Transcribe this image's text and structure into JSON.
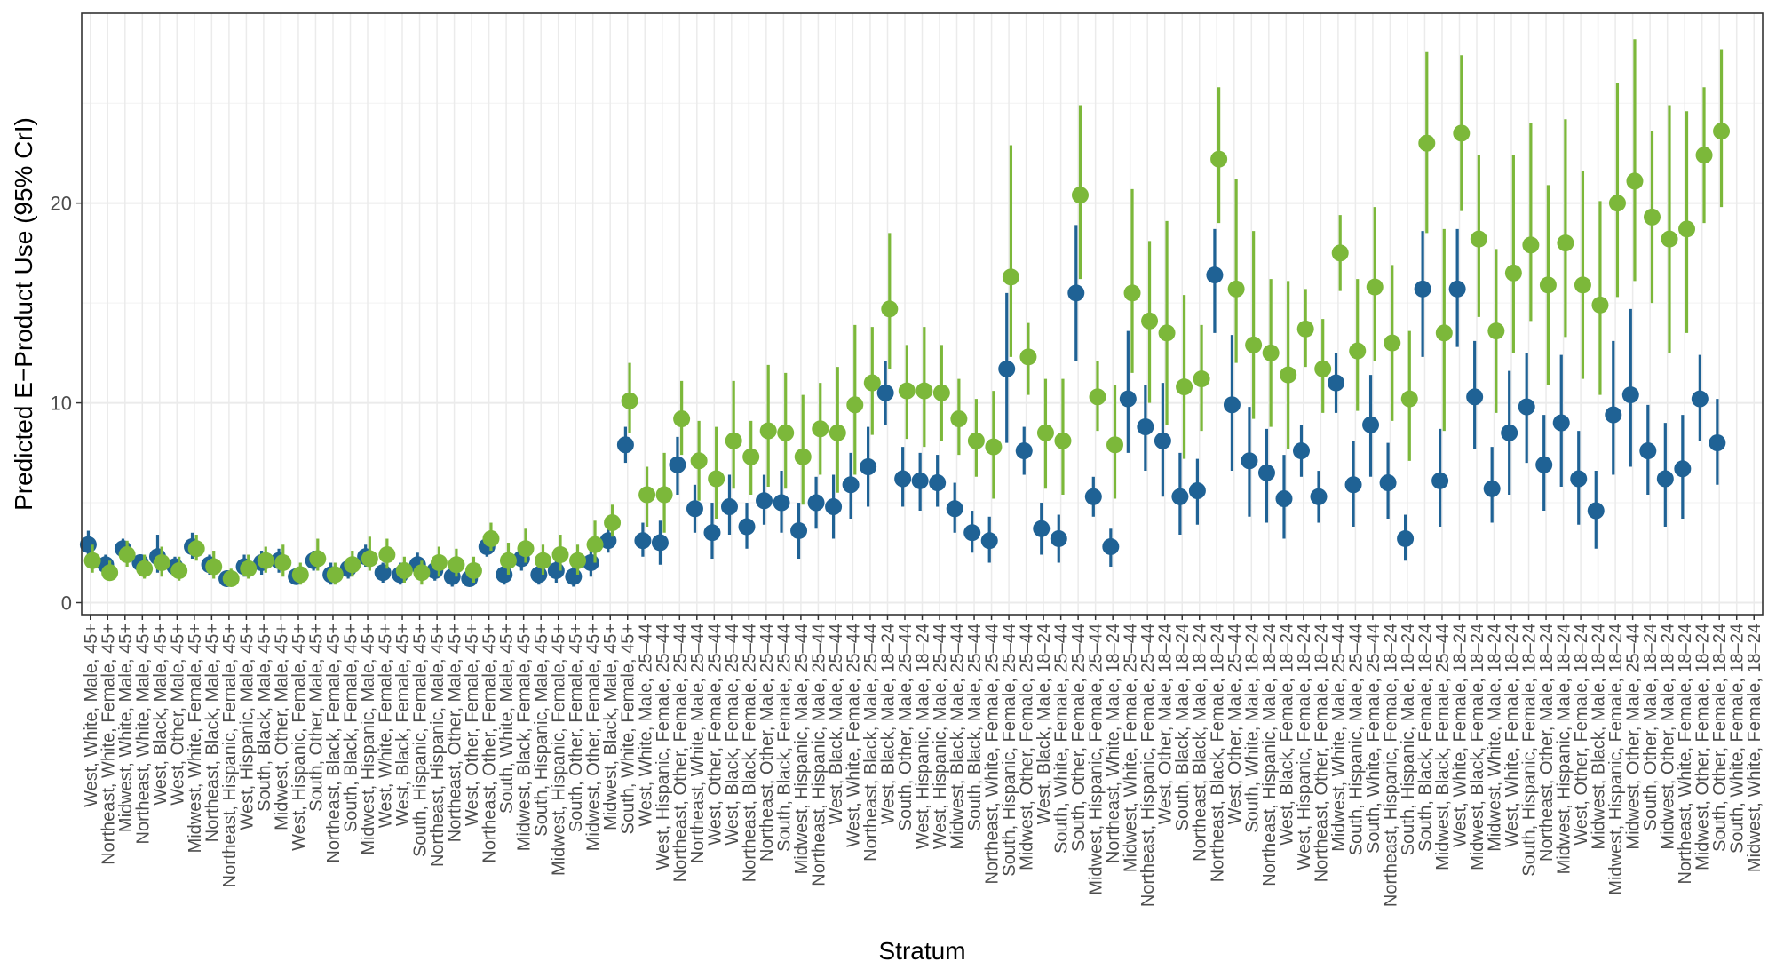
{
  "chart_data": {
    "type": "scatter",
    "ylabel": "Predicted E−Product Use (95% CrI)",
    "xlabel": "Stratum",
    "ylim": [
      -0.6,
      29.5
    ],
    "yticks": [
      0,
      10,
      20
    ],
    "grid": true,
    "legend": "none",
    "colors": {
      "blue": "#1f6295",
      "green": "#7cb83a"
    },
    "categories": [
      "West, White, Male, 45+",
      "Northeast, White, Female, 45+",
      "Midwest, White, Male, 45+",
      "Northeast, White, Male, 45+",
      "West, Black, Male, 45+",
      "West, Other, Male, 45+",
      "Midwest, White, Female, 45+",
      "Northeast, Black, Male, 45+",
      "Northeast, Hispanic, Female, 45+",
      "West, Hispanic, Male, 45+",
      "South, Black, Male, 45+",
      "Midwest, Other, Male, 45+",
      "West, Hispanic, Female, 45+",
      "South, Other, Male, 45+",
      "Northeast, Black, Female, 45+",
      "South, Black, Female, 45+",
      "Midwest, Hispanic, Male, 45+",
      "West, White, Female, 45+",
      "West, Black, Female, 45+",
      "South, Hispanic, Female, 45+",
      "Northeast, Hispanic, Male, 45+",
      "Northeast, Other, Male, 45+",
      "West, Other, Female, 45+",
      "Northeast, Other, Female, 45+",
      "South, White, Male, 45+",
      "Midwest, Black, Female, 45+",
      "South, Hispanic, Male, 45+",
      "Midwest, Hispanic, Female, 45+",
      "South, Other, Female, 45+",
      "Midwest, Other, Female, 45+",
      "Midwest, Black, Male, 45+",
      "South, White, Female, 45+",
      "West, White, Male, 25–44",
      "West, Hispanic, Female, 25–44",
      "Northeast, Other, Female, 25–44",
      "Northeast, White, Male, 25–44",
      "West, Other, Female, 25–44",
      "West, Black, Female, 25–44",
      "Northeast, Black, Female, 25–44",
      "Northeast, Other, Male, 25–44",
      "South, Black, Female, 25–44",
      "Midwest, Hispanic, Male, 25–44",
      "Northeast, Hispanic, Male, 25–44",
      "West, Black, Male, 25–44",
      "West, White, Female, 25–44",
      "Northeast, Black, Male, 25–44",
      "West, Black, Male, 18–24",
      "South, Other, Male, 25–44",
      "West, Hispanic, Male, 18–24",
      "West, Hispanic, Male, 25–44",
      "Midwest, Black, Male, 25–44",
      "South, Black, Male, 25–44",
      "Northeast, White, Female, 25–44",
      "South, Hispanic, Female, 25–44",
      "Midwest, Other, Female, 25–44",
      "West, Black, Male, 18–24",
      "South, White, Female, 25–44",
      "South, Other, Female, 25–44",
      "Midwest, Hispanic, Female, 25–44",
      "Northeast, White, Male, 18–24",
      "Midwest, White, Female, 25–44",
      "Northeast, Hispanic, Female, 25–44",
      "West, Other, Male, 18–24",
      "South, Black, Male, 18–24",
      "Northeast, Black, Male, 18–24",
      "Northeast, Black, Female, 18–24",
      "West, Other, Male, 25–44",
      "South, White, Male, 18–24",
      "Northeast, Hispanic, Male, 18–24",
      "West, Black, Female, 18–24",
      "West, Hispanic, Female, 18–24",
      "Northeast, Other, Female, 18–24",
      "Midwest, White, Male, 25–44",
      "South, Hispanic, Male, 25–44",
      "South, White, Female, 25–44",
      "Northeast, Hispanic, Female, 18–24",
      "South, Hispanic, Male, 18–24",
      "South, Black, Female, 18–24",
      "Midwest, Black, Female, 25–44",
      "West, White, Female, 18–24",
      "Midwest, Black, Female, 18–24",
      "Midwest, White, Male, 18–24",
      "West, White, Female, 18–24",
      "South, Hispanic, Female, 18–24",
      "Northeast, Other, Male, 18–24",
      "Midwest, Hispanic, Male, 18–24",
      "West, Other, Female, 18–24",
      "Midwest, Black, Male, 18–24",
      "Midwest, Hispanic, Female, 18–24",
      "Midwest, Other, Male, 25–44",
      "South, Other, Male, 18–24",
      "Midwest, Other, Male, 18–24",
      "Northeast, White, Female, 18–24",
      "Midwest, Other, Female, 18–24",
      "South, Other, Female, 18–24",
      "South, White, Female, 18–24",
      "Midwest, White, Female, 18–24"
    ],
    "series": [
      {
        "color": "#1f6295",
        "offset": -0.12,
        "values": [
          2.9,
          1.9,
          2.7,
          2.0,
          2.3,
          1.8,
          2.8,
          1.9,
          1.2,
          1.8,
          2.0,
          2.1,
          1.3,
          2.1,
          1.4,
          1.7,
          2.3,
          1.5,
          1.4,
          1.9,
          1.6,
          1.3,
          1.2,
          2.8,
          1.4,
          2.2,
          1.4,
          1.6,
          1.3,
          2.0,
          3.1,
          7.9,
          3.1,
          3.0,
          6.9,
          4.7,
          3.5,
          4.8,
          3.8,
          5.1,
          5.0,
          3.6,
          5.0,
          4.8,
          5.9,
          6.8,
          10.5,
          6.2,
          6.1,
          6.0,
          4.7,
          3.5,
          3.1,
          11.7,
          7.6,
          3.7,
          3.2,
          15.5,
          5.3,
          2.8,
          10.2,
          8.8,
          8.1,
          5.3,
          5.6,
          16.4,
          9.9,
          7.1,
          6.5,
          5.2,
          7.6,
          5.3,
          11.0,
          5.9,
          8.9,
          6.0,
          3.2,
          15.7,
          6.1,
          15.7,
          10.3,
          5.7,
          8.5,
          9.8,
          6.9,
          9.0,
          6.2,
          4.6,
          9.4,
          10.4,
          7.6,
          6.2,
          6.7,
          10.2,
          8.0
        ],
        "lo": [
          2.3,
          1.5,
          2.2,
          1.6,
          1.5,
          1.3,
          2.2,
          1.4,
          0.9,
          1.3,
          1.4,
          1.5,
          0.9,
          1.6,
          0.9,
          1.2,
          1.8,
          1.0,
          0.9,
          1.3,
          1.1,
          0.8,
          0.8,
          2.3,
          0.9,
          1.6,
          0.9,
          1.0,
          0.8,
          1.3,
          2.5,
          7.0,
          2.3,
          1.9,
          5.4,
          3.5,
          2.2,
          3.4,
          2.7,
          3.9,
          3.5,
          2.2,
          3.7,
          3.2,
          4.2,
          4.8,
          8.9,
          4.8,
          4.6,
          4.8,
          3.5,
          2.5,
          2.0,
          8.0,
          6.4,
          2.4,
          2.0,
          12.1,
          4.3,
          1.8,
          7.5,
          6.6,
          5.3,
          3.4,
          3.9,
          13.5,
          6.6,
          4.3,
          4.0,
          3.2,
          6.3,
          4.0,
          9.5,
          3.8,
          6.3,
          4.2,
          2.1,
          12.3,
          3.8,
          12.8,
          7.7,
          4.0,
          5.4,
          7.0,
          4.6,
          5.8,
          3.9,
          2.7,
          6.4,
          6.8,
          5.4,
          3.8,
          4.2,
          8.1,
          5.9
        ],
        "hi": [
          3.6,
          2.4,
          3.2,
          2.4,
          3.4,
          2.3,
          3.5,
          2.4,
          1.6,
          2.4,
          2.6,
          2.7,
          1.7,
          2.6,
          2.0,
          2.2,
          2.9,
          2.0,
          2.0,
          2.5,
          2.2,
          1.8,
          1.6,
          3.3,
          1.9,
          2.8,
          1.9,
          2.2,
          1.8,
          2.8,
          3.7,
          8.8,
          4.0,
          4.1,
          8.3,
          5.9,
          5.0,
          6.4,
          5.0,
          6.4,
          6.6,
          5.0,
          6.3,
          6.4,
          7.5,
          8.8,
          12.1,
          7.8,
          7.5,
          7.4,
          6.0,
          4.6,
          4.3,
          15.5,
          8.8,
          5.0,
          4.4,
          18.9,
          6.3,
          3.7,
          13.6,
          10.9,
          11.0,
          7.5,
          7.2,
          18.7,
          13.4,
          9.8,
          8.7,
          7.4,
          8.9,
          6.6,
          12.5,
          8.1,
          11.4,
          8.0,
          4.4,
          18.6,
          8.7,
          18.7,
          13.1,
          7.8,
          11.6,
          12.5,
          9.4,
          12.4,
          8.6,
          6.6,
          13.1,
          14.7,
          9.9,
          9.0,
          9.4,
          12.4,
          10.2
        ]
      },
      {
        "color": "#7cb83a",
        "offset": 0.12,
        "values": [
          2.1,
          1.5,
          2.4,
          1.7,
          2.0,
          1.6,
          2.7,
          1.8,
          1.2,
          1.7,
          2.1,
          2.0,
          1.4,
          2.2,
          1.4,
          1.9,
          2.2,
          2.4,
          1.6,
          1.5,
          2.0,
          1.9,
          1.6,
          3.2,
          2.1,
          2.7,
          2.1,
          2.4,
          2.1,
          2.9,
          4.0,
          10.1,
          5.4,
          5.4,
          9.2,
          7.1,
          6.2,
          8.1,
          7.3,
          8.6,
          8.5,
          7.3,
          8.7,
          8.5,
          9.9,
          11.0,
          14.7,
          10.6,
          10.6,
          10.5,
          9.2,
          8.1,
          7.8,
          16.3,
          12.3,
          8.5,
          8.1,
          20.4,
          10.3,
          7.9,
          15.5,
          14.1,
          13.5,
          10.8,
          11.2,
          22.2,
          15.7,
          12.9,
          12.5,
          11.4,
          13.7,
          11.7,
          17.5,
          12.6,
          15.8,
          13.0,
          10.2,
          23.0,
          13.5,
          23.5,
          18.2,
          13.6,
          16.5,
          17.9,
          15.9,
          18.0,
          15.9,
          14.9,
          20.0,
          21.1,
          19.3,
          18.2,
          18.7,
          22.4,
          23.6
        ],
        "lo": [
          1.5,
          1.1,
          1.8,
          1.2,
          1.3,
          1.1,
          2.1,
          1.2,
          0.8,
          1.2,
          1.5,
          1.3,
          0.9,
          1.6,
          0.9,
          1.3,
          1.6,
          1.7,
          1.0,
          0.9,
          1.3,
          1.3,
          1.0,
          2.6,
          1.4,
          2.0,
          1.4,
          1.6,
          1.4,
          2.0,
          3.3,
          8.5,
          3.8,
          3.5,
          7.4,
          5.1,
          4.2,
          5.7,
          5.4,
          5.8,
          5.7,
          4.9,
          6.4,
          5.5,
          6.4,
          8.4,
          11.7,
          8.2,
          7.8,
          8.1,
          7.4,
          6.3,
          5.2,
          12.3,
          10.4,
          5.7,
          5.4,
          16.2,
          8.6,
          5.2,
          11.5,
          10.0,
          8.9,
          7.2,
          8.6,
          19.0,
          12.0,
          9.2,
          8.8,
          7.7,
          11.8,
          9.5,
          15.6,
          9.6,
          12.1,
          9.1,
          7.1,
          18.5,
          8.6,
          19.6,
          14.3,
          9.5,
          12.5,
          14.1,
          10.9,
          13.3,
          11.2,
          10.4,
          15.3,
          16.1,
          15.0,
          12.5,
          13.5,
          19.0,
          19.8
        ],
        "hi": [
          2.9,
          2.1,
          3.1,
          2.4,
          2.8,
          2.3,
          3.4,
          2.6,
          1.7,
          2.4,
          2.8,
          2.9,
          2.0,
          3.2,
          2.0,
          2.6,
          3.3,
          3.2,
          2.3,
          2.1,
          2.8,
          2.7,
          2.3,
          4.0,
          3.0,
          3.7,
          2.9,
          3.4,
          2.9,
          4.1,
          4.9,
          12.0,
          6.8,
          7.5,
          11.1,
          9.1,
          8.8,
          11.1,
          9.1,
          11.9,
          11.5,
          10.4,
          11.0,
          11.8,
          13.9,
          13.8,
          18.5,
          12.9,
          13.8,
          12.9,
          11.2,
          10.2,
          10.6,
          22.9,
          14.0,
          11.2,
          11.2,
          24.9,
          12.1,
          10.9,
          20.7,
          18.1,
          19.1,
          15.4,
          13.9,
          25.8,
          21.2,
          18.6,
          16.2,
          16.1,
          15.7,
          14.2,
          19.4,
          16.2,
          19.8,
          16.9,
          13.6,
          27.6,
          18.7,
          27.4,
          22.4,
          17.7,
          22.4,
          24.0,
          20.9,
          24.2,
          21.6,
          20.1,
          26.0,
          28.2,
          23.6,
          24.9,
          24.6,
          25.8,
          27.7
        ]
      }
    ]
  }
}
